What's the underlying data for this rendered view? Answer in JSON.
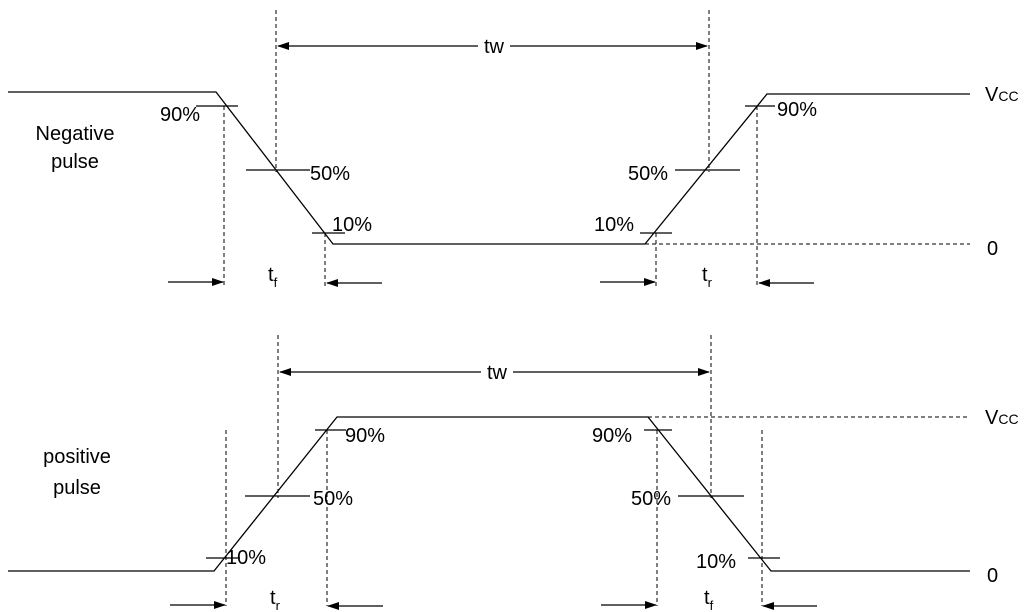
{
  "negative": {
    "label_line1": "Negative",
    "label_line2": "pulse",
    "pct90_left": "90%",
    "pct50_left": "50%",
    "pct10_left": "10%",
    "pct10_right": "10%",
    "pct50_right": "50%",
    "pct90_right": "90%",
    "width": "tw",
    "fall": {
      "base": "t",
      "sub": "f"
    },
    "rise": {
      "base": "t",
      "sub": "r"
    }
  },
  "positive": {
    "label_line1": "positive",
    "label_line2": "pulse",
    "pct10_left": "10%",
    "pct50_left": "50%",
    "pct90_left": "90%",
    "pct90_right": "90%",
    "pct50_right": "50%",
    "pct10_right": "10%",
    "width": "tw",
    "rise": {
      "base": "t",
      "sub": "r"
    },
    "fall": {
      "base": "t",
      "sub": "f"
    }
  },
  "levels": {
    "vcc_base": "V",
    "vcc_sub": "CC",
    "zero": "0"
  }
}
